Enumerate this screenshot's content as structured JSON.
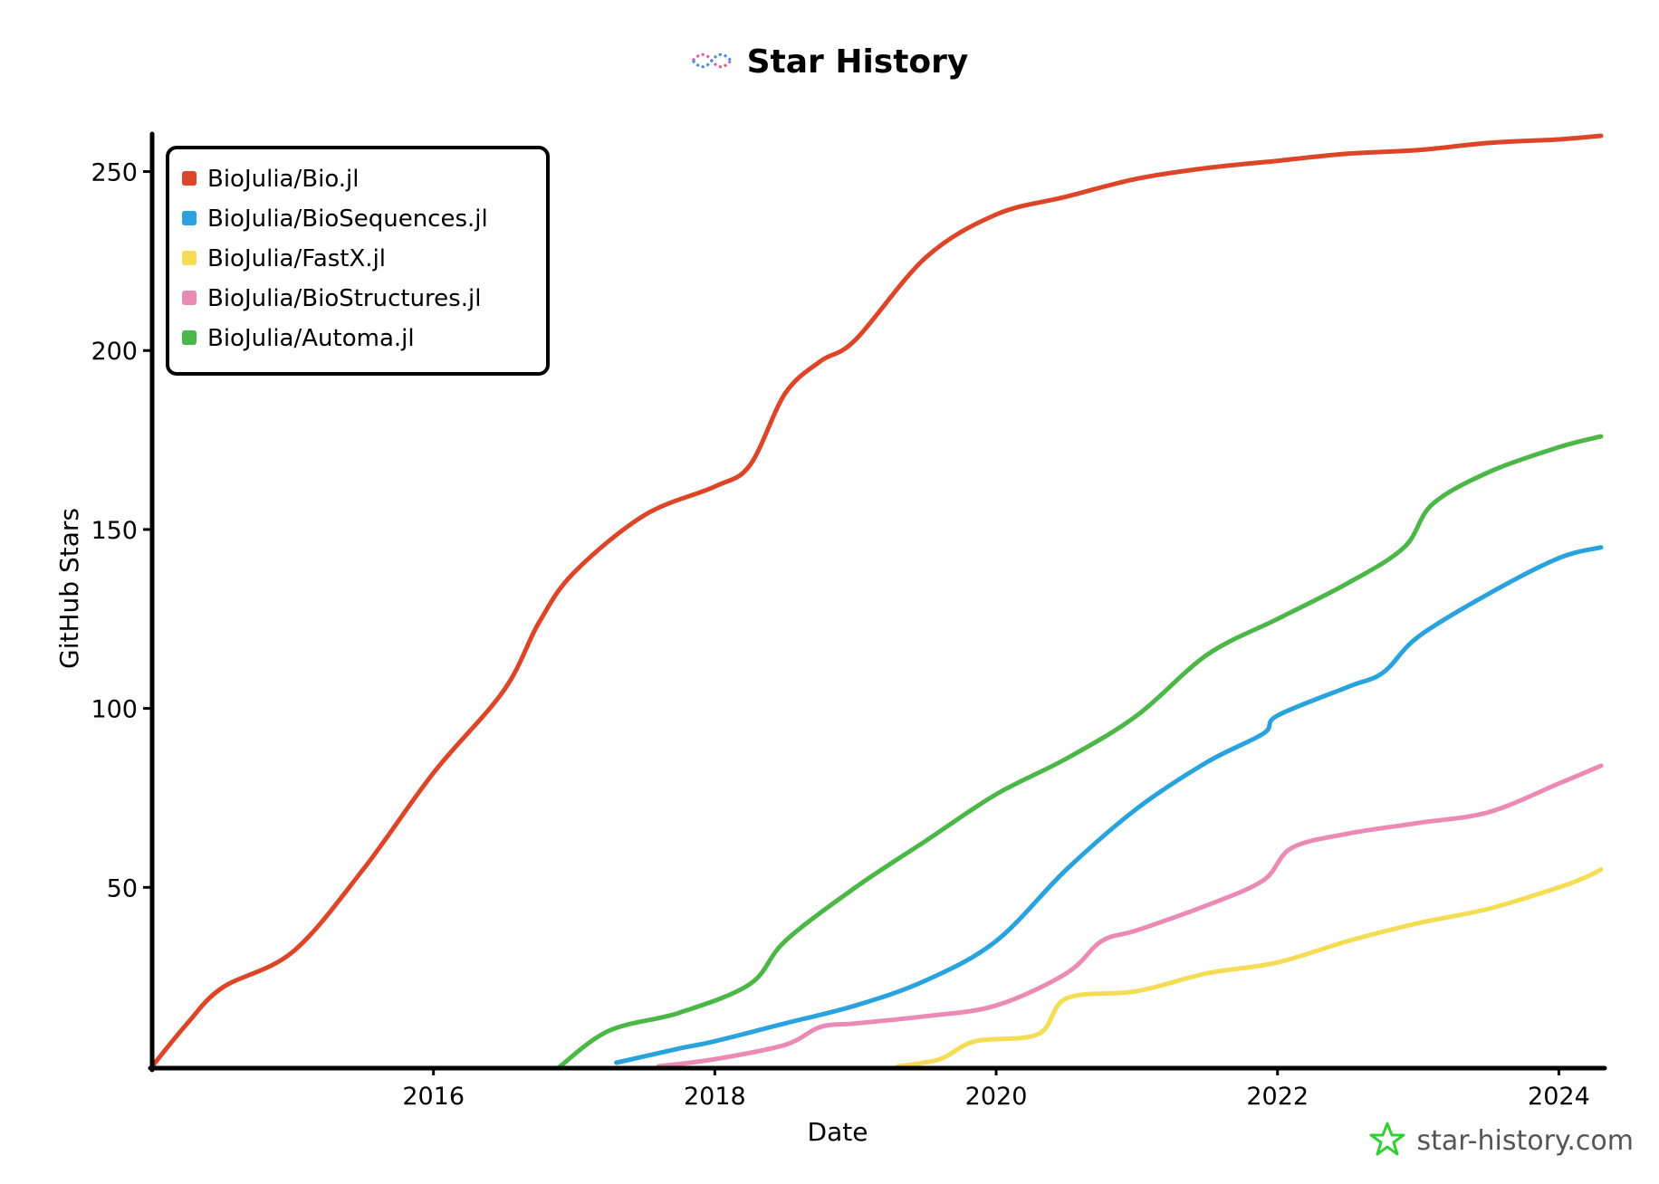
{
  "chart_data": {
    "type": "line",
    "title": "Star History",
    "xlabel": "Date",
    "ylabel": "GitHub Stars",
    "xlim": [
      2014.0,
      2024.3
    ],
    "ylim": [
      0,
      260
    ],
    "xticks": [
      2016,
      2018,
      2020,
      2022,
      2024
    ],
    "xtick_labels": [
      "2016",
      "2018",
      "2020",
      "2022",
      "2024"
    ],
    "yticks": [
      50,
      100,
      150,
      200,
      250
    ],
    "ytick_labels": [
      "50",
      "100",
      "150",
      "200",
      "250"
    ],
    "legend_position": "top-left",
    "series": [
      {
        "name": "BioJulia/Bio.jl",
        "color": "#dd4528",
        "x": [
          2014.0,
          2014.25,
          2014.5,
          2015.0,
          2015.5,
          2016.0,
          2016.5,
          2016.75,
          2017.0,
          2017.5,
          2018.0,
          2018.25,
          2018.5,
          2018.75,
          2019.0,
          2019.5,
          2020.0,
          2020.5,
          2021.0,
          2021.5,
          2022.0,
          2022.5,
          2023.0,
          2023.5,
          2024.0,
          2024.3
        ],
        "y": [
          0,
          12,
          22,
          32,
          55,
          82,
          105,
          124,
          138,
          154,
          162,
          168,
          188,
          197,
          203,
          226,
          238,
          243,
          248,
          251,
          253,
          255,
          256,
          258,
          259,
          260
        ]
      },
      {
        "name": "BioJulia/BioSequences.jl",
        "color": "#28a3dd",
        "x": [
          2017.3,
          2017.75,
          2018.0,
          2018.5,
          2019.0,
          2019.5,
          2020.0,
          2020.5,
          2021.0,
          2021.5,
          2021.9,
          2022.0,
          2022.5,
          2022.75,
          2023.0,
          2023.5,
          2024.0,
          2024.3
        ],
        "y": [
          1,
          5,
          7,
          12,
          17,
          24,
          35,
          55,
          72,
          85,
          93,
          98,
          106,
          110,
          120,
          132,
          142,
          145
        ]
      },
      {
        "name": "BioJulia/FastX.jl",
        "color": "#f4dd53",
        "x": [
          2019.3,
          2019.6,
          2019.85,
          2020.3,
          2020.5,
          2021.0,
          2021.5,
          2022.0,
          2022.5,
          2023.0,
          2023.5,
          2024.0,
          2024.2,
          2024.3
        ],
        "y": [
          0,
          2,
          7,
          9,
          19,
          21,
          26,
          29,
          35,
          40,
          44,
          50,
          53,
          55
        ]
      },
      {
        "name": "BioJulia/BioStructures.jl",
        "color": "#ec8ab6",
        "x": [
          2017.6,
          2018.0,
          2018.5,
          2018.75,
          2019.0,
          2019.5,
          2020.0,
          2020.5,
          2020.75,
          2021.0,
          2021.5,
          2021.9,
          2022.1,
          2022.5,
          2023.0,
          2023.5,
          2024.0,
          2024.3
        ],
        "y": [
          0,
          2,
          6,
          11,
          12,
          14,
          17,
          26,
          35,
          38,
          45,
          52,
          61,
          65,
          68,
          71,
          79,
          84
        ]
      },
      {
        "name": "BioJulia/Automa.jl",
        "color": "#4bb747",
        "x": [
          2016.9,
          2017.25,
          2017.75,
          2018.25,
          2018.5,
          2019.0,
          2019.5,
          2020.0,
          2020.5,
          2021.0,
          2021.5,
          2022.0,
          2022.5,
          2022.9,
          2023.1,
          2023.5,
          2024.0,
          2024.3
        ],
        "y": [
          0,
          10,
          15,
          23,
          35,
          50,
          63,
          76,
          86,
          98,
          115,
          125,
          135,
          145,
          157,
          166,
          173,
          176
        ]
      }
    ]
  },
  "watermark": {
    "text": "star-history.com",
    "color": "#30d032"
  }
}
